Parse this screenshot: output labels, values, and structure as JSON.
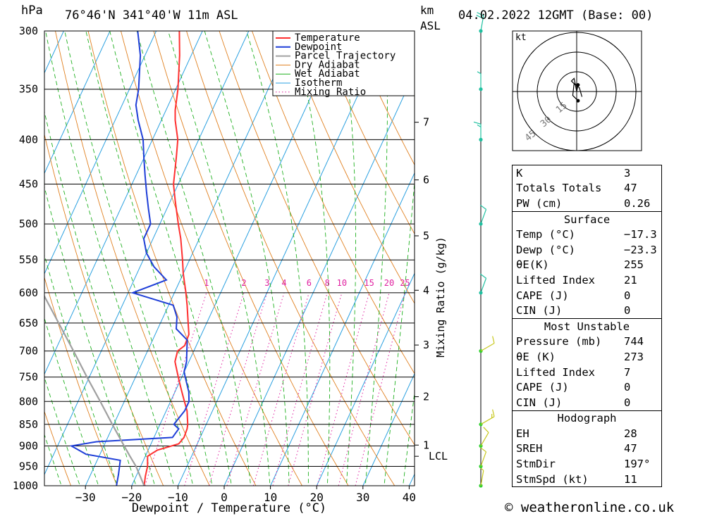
{
  "header": {
    "pressure_unit": "hPa",
    "location": "76°46'N 341°40'W 11m ASL",
    "km_label": "km",
    "asl_label": "ASL",
    "datetime": "04.02.2022 12GMT (Base: 00)"
  },
  "footer": {
    "credit": "© weatheronline.co.uk"
  },
  "colors": {
    "temperature": "#ff3030",
    "dewpoint": "#1f3fd8",
    "parcel": "#a0a0a0",
    "dry_adiabat": "#e08020",
    "wet_adiabat": "#20b020",
    "isotherm": "#2aa0e0",
    "mixing_ratio": "#e020a0",
    "wind_barb": "#20c0a0",
    "wind_barb_low": "#c8c820"
  },
  "chart_data": {
    "type": "line",
    "xlabel": "Dewpoint / Temperature (°C)",
    "ylabel": "hPa",
    "right_label": "Mixing Ratio (g/kg)",
    "xlim": [
      -40,
      40
    ],
    "ylim": [
      1000,
      300
    ],
    "x_ticks": [
      -30,
      -20,
      -10,
      0,
      10,
      20,
      30,
      40
    ],
    "pressure_ticks": [
      300,
      350,
      400,
      450,
      500,
      550,
      600,
      650,
      700,
      750,
      800,
      850,
      900,
      950,
      1000
    ],
    "km_ticks": [
      {
        "label": "1",
        "p": 898
      },
      {
        "label": "2",
        "p": 790
      },
      {
        "label": "3",
        "p": 689
      },
      {
        "label": "4",
        "p": 596
      },
      {
        "label": "5",
        "p": 516
      },
      {
        "label": "6",
        "p": 445
      },
      {
        "label": "7",
        "p": 382
      }
    ],
    "lcl": {
      "label": "LCL",
      "p": 925
    },
    "mixing_ratio_labels": [
      "1",
      "2",
      "3",
      "4",
      "6",
      "8",
      "10",
      "15",
      "20",
      "25"
    ],
    "mixing_ratio_values": [
      1,
      2,
      3,
      4,
      6,
      8,
      10,
      15,
      20,
      25
    ],
    "legend": [
      "Temperature",
      "Dewpoint",
      "Parcel Trajectory",
      "Dry Adiabat",
      "Wet Adiabat",
      "Isotherm",
      "Mixing Ratio"
    ],
    "series": [
      {
        "name": "Temperature",
        "p": [
          1000,
          975,
          950,
          925,
          910,
          895,
          880,
          860,
          850,
          820,
          800,
          780,
          760,
          740,
          720,
          700,
          690,
          670,
          650,
          620,
          600,
          570,
          550,
          520,
          500,
          470,
          450,
          420,
          400,
          380,
          370,
          350,
          320,
          300
        ],
        "t": [
          -17.3,
          -18,
          -18.5,
          -19.5,
          -18,
          -14,
          -13.5,
          -13.7,
          -14,
          -15.5,
          -17,
          -18.5,
          -20,
          -21.5,
          -23,
          -23.5,
          -22.5,
          -22.7,
          -24,
          -26,
          -27.5,
          -30,
          -31.5,
          -34,
          -36,
          -39,
          -41,
          -43,
          -44.5,
          -47,
          -48,
          -49.5,
          -52.5,
          -55
        ]
      },
      {
        "name": "Dewpoint",
        "p": [
          1000,
          970,
          935,
          920,
          900,
          890,
          880,
          860,
          850,
          820,
          800,
          780,
          760,
          740,
          720,
          700,
          680,
          660,
          640,
          620,
          600,
          580,
          560,
          540,
          520,
          500,
          480,
          460,
          440,
          420,
          400,
          380,
          365,
          350,
          320,
          300
        ],
        "t": [
          -23.3,
          -24,
          -25,
          -33,
          -37,
          -32,
          -16,
          -15.5,
          -17,
          -16,
          -16,
          -17,
          -18.5,
          -20,
          -20.5,
          -21.5,
          -22.5,
          -26,
          -27,
          -29,
          -39,
          -33,
          -37,
          -40,
          -42,
          -42,
          -44,
          -46,
          -48,
          -50,
          -52,
          -55,
          -57,
          -58,
          -61,
          -64
        ]
      },
      {
        "name": "Parcel Trajectory",
        "p": [
          1000,
          950,
          925,
          900,
          850,
          800,
          750,
          700,
          650,
          600,
          550
        ],
        "t": [
          -17.3,
          -21,
          -23.3,
          -25.6,
          -30.3,
          -35.2,
          -40.5,
          -46,
          -52,
          -58.5,
          -66
        ]
      }
    ],
    "wind_profile": [
      {
        "p": 1000,
        "dir": 190,
        "kt": 5
      },
      {
        "p": 950,
        "dir": 200,
        "kt": 10
      },
      {
        "p": 900,
        "dir": 210,
        "kt": 10
      },
      {
        "p": 850,
        "dir": 240,
        "kt": 15
      },
      {
        "p": 700,
        "dir": 240,
        "kt": 10
      },
      {
        "p": 600,
        "dir": 200,
        "kt": 10
      },
      {
        "p": 500,
        "dir": 200,
        "kt": 10
      },
      {
        "p": 400,
        "dir": 180,
        "kt": 15
      },
      {
        "p": 350,
        "dir": 180,
        "kt": 5
      },
      {
        "p": 300,
        "dir": 190,
        "kt": 20
      }
    ],
    "hodograph": {
      "unit_label": "kt",
      "ring_labels": [
        "15",
        "30",
        "45"
      ],
      "points": [
        [
          1,
          -7
        ],
        [
          -3,
          -3
        ],
        [
          -2,
          6
        ],
        [
          1,
          5
        ],
        [
          0,
          0
        ],
        [
          -2,
          10
        ],
        [
          -4,
          8
        ],
        [
          0,
          4
        ],
        [
          2,
          3
        ],
        [
          4,
          -4
        ]
      ]
    }
  },
  "indices": {
    "general": [
      {
        "label": "K",
        "value": "3"
      },
      {
        "label": "Totals Totals",
        "value": "47"
      },
      {
        "label": "PW (cm)",
        "value": "0.26"
      }
    ],
    "surface": {
      "title": "Surface",
      "rows": [
        {
          "label": "Temp (°C)",
          "value": "−17.3"
        },
        {
          "label": "Dewp (°C)",
          "value": "−23.3"
        },
        {
          "label": "θE(K)",
          "value": "255"
        },
        {
          "label": "Lifted Index",
          "value": "21"
        },
        {
          "label": "CAPE (J)",
          "value": "0"
        },
        {
          "label": "CIN (J)",
          "value": "0"
        }
      ]
    },
    "most_unstable": {
      "title": "Most Unstable",
      "rows": [
        {
          "label": "Pressure (mb)",
          "value": "744"
        },
        {
          "label": "θE (K)",
          "value": "273"
        },
        {
          "label": "Lifted Index",
          "value": "7"
        },
        {
          "label": "CAPE (J)",
          "value": "0"
        },
        {
          "label": "CIN (J)",
          "value": "0"
        }
      ]
    },
    "hodograph": {
      "title": "Hodograph",
      "rows": [
        {
          "label": "EH",
          "value": "28"
        },
        {
          "label": "SREH",
          "value": "47"
        },
        {
          "label": "StmDir",
          "value": "197°"
        },
        {
          "label": "StmSpd (kt)",
          "value": "11"
        }
      ]
    }
  }
}
